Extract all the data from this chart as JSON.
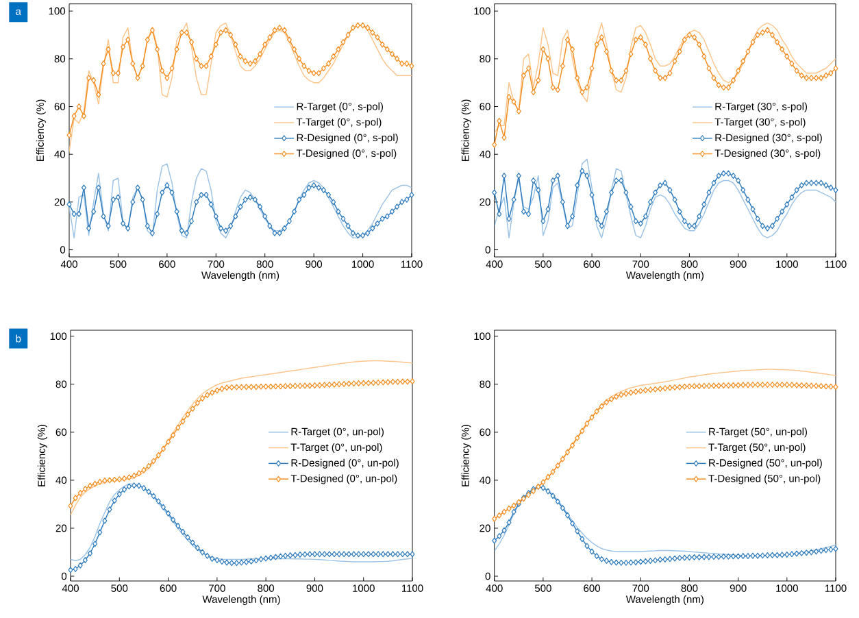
{
  "chart_data": [
    {
      "type": "line",
      "annotations": [
        "a"
      ],
      "xlabel": "Wavelength (nm)",
      "ylabel": "Efficiency (%)",
      "xlim": [
        400,
        1100
      ],
      "ylim": [
        -3,
        103
      ],
      "xticks": [
        400,
        500,
        600,
        700,
        800,
        900,
        1000,
        1100
      ],
      "yticks": [
        0,
        20,
        40,
        60,
        80,
        100
      ],
      "legend": "right",
      "x": [
        400,
        410,
        420,
        430,
        440,
        450,
        460,
        470,
        480,
        490,
        500,
        510,
        520,
        530,
        540,
        550,
        560,
        570,
        580,
        590,
        600,
        610,
        620,
        630,
        640,
        650,
        660,
        670,
        680,
        690,
        700,
        710,
        720,
        730,
        740,
        750,
        760,
        770,
        780,
        790,
        800,
        810,
        820,
        830,
        840,
        850,
        860,
        870,
        880,
        890,
        900,
        910,
        920,
        930,
        940,
        950,
        960,
        970,
        980,
        990,
        1000,
        1010,
        1020,
        1030,
        1040,
        1050,
        1060,
        1070,
        1080,
        1090,
        1100
      ],
      "series": [
        {
          "name": "R-Target (0°, s-pol)",
          "color": "#9dc3e6",
          "marker": "none",
          "line_style": "solid",
          "values": [
            18,
            5,
            22,
            23,
            6,
            20,
            32,
            15,
            8,
            29,
            30,
            12,
            8,
            22,
            26,
            21,
            8,
            6,
            25,
            35,
            36,
            28,
            15,
            6,
            5,
            20,
            30,
            34,
            33,
            25,
            12,
            7,
            5,
            9,
            16,
            22,
            25,
            24,
            21,
            17,
            13,
            10,
            8,
            8,
            9,
            12,
            16,
            21,
            25,
            28,
            29,
            28,
            26,
            22,
            18,
            14,
            10,
            7,
            5,
            5,
            6,
            8,
            11,
            15,
            19,
            22,
            25,
            26,
            27,
            27,
            26
          ]
        },
        {
          "name": "T-Target (0°, s-pol)",
          "color": "#fdc58c",
          "marker": "none",
          "line_style": "solid",
          "values": [
            41,
            55,
            53,
            58,
            75,
            70,
            61,
            77,
            88,
            70,
            70,
            89,
            93,
            78,
            72,
            77,
            88,
            93,
            85,
            65,
            64,
            72,
            88,
            91,
            95,
            85,
            72,
            65,
            65,
            78,
            91,
            94,
            95,
            90,
            83,
            77,
            75,
            75,
            77,
            80,
            84,
            88,
            91,
            92,
            91,
            87,
            82,
            77,
            73,
            71,
            70,
            70,
            72,
            75,
            78,
            82,
            86,
            90,
            93,
            94,
            94,
            92,
            88,
            84,
            80,
            77,
            75,
            73,
            73,
            73,
            73
          ]
        },
        {
          "name": "R-Designed (0°, s-pol)",
          "color": "#2e7bbd",
          "marker": "diamond",
          "line_style": "solid",
          "values": [
            19,
            15,
            15,
            26,
            9,
            16,
            26,
            14,
            10,
            21,
            22,
            11,
            9,
            20,
            26,
            21,
            10,
            7,
            15,
            24,
            27,
            24,
            16,
            8,
            7,
            12,
            20,
            23,
            23,
            19,
            14,
            9,
            8,
            10,
            14,
            18,
            21,
            22,
            21,
            18,
            14,
            10,
            7,
            7,
            9,
            12,
            16,
            21,
            23,
            26,
            27,
            26,
            25,
            23,
            20,
            16,
            13,
            10,
            7,
            6,
            6,
            7,
            9,
            11,
            13,
            14,
            16,
            18,
            20,
            21,
            23
          ]
        },
        {
          "name": "T-Designed (0°, s-pol)",
          "color": "#f58d1e",
          "marker": "diamond",
          "line_style": "solid",
          "values": [
            48,
            56,
            60,
            56,
            72,
            71,
            65,
            78,
            84,
            74,
            74,
            85,
            88,
            78,
            72,
            77,
            88,
            92,
            84,
            75,
            72,
            76,
            84,
            91,
            91,
            87,
            80,
            77,
            77,
            81,
            86,
            91,
            92,
            90,
            86,
            81,
            79,
            78,
            79,
            82,
            86,
            89,
            92,
            93,
            92,
            88,
            84,
            80,
            77,
            75,
            74,
            74,
            76,
            78,
            81,
            84,
            87,
            90,
            93,
            94,
            94,
            93,
            91,
            89,
            86,
            84,
            82,
            80,
            78,
            78,
            77
          ]
        }
      ]
    },
    {
      "type": "line",
      "xlabel": "Wavelength (nm)",
      "ylabel": "Efficiency (%)",
      "xlim": [
        400,
        1100
      ],
      "ylim": [
        -3,
        103
      ],
      "xticks": [
        400,
        500,
        600,
        700,
        800,
        900,
        1000,
        1100
      ],
      "yticks": [
        0,
        20,
        40,
        60,
        80,
        100
      ],
      "legend": "right",
      "x": [
        400,
        410,
        420,
        430,
        440,
        450,
        460,
        470,
        480,
        490,
        500,
        510,
        520,
        530,
        540,
        550,
        560,
        570,
        580,
        590,
        600,
        610,
        620,
        630,
        640,
        650,
        660,
        670,
        680,
        690,
        700,
        710,
        720,
        730,
        740,
        750,
        760,
        770,
        780,
        790,
        800,
        810,
        820,
        830,
        840,
        850,
        860,
        870,
        880,
        890,
        900,
        910,
        920,
        930,
        940,
        950,
        960,
        970,
        980,
        990,
        1000,
        1010,
        1020,
        1030,
        1040,
        1050,
        1060,
        1070,
        1080,
        1090,
        1100
      ],
      "series": [
        {
          "name": "R-Target (30°, s-pol)",
          "color": "#9dc3e6",
          "marker": "none",
          "line_style": "solid",
          "values": [
            10,
            17,
            22,
            5,
            20,
            30,
            18,
            17,
            22,
            31,
            6,
            12,
            26,
            28,
            19,
            9,
            10,
            23,
            36,
            38,
            26,
            10,
            5,
            13,
            25,
            34,
            33,
            23,
            14,
            6,
            5,
            10,
            17,
            22,
            23,
            22,
            19,
            15,
            12,
            9,
            8,
            8,
            11,
            15,
            20,
            25,
            28,
            29,
            29,
            28,
            25,
            21,
            17,
            13,
            9,
            6,
            5,
            6,
            8,
            12,
            15,
            19,
            22,
            24,
            25,
            25,
            25,
            24,
            23,
            22,
            20
          ]
        },
        {
          "name": "T-Target (30°, s-pol)",
          "color": "#fdc58c",
          "marker": "none",
          "line_style": "solid",
          "values": [
            49,
            52,
            52,
            70,
            62,
            58,
            80,
            82,
            68,
            78,
            93,
            86,
            74,
            73,
            88,
            92,
            80,
            70,
            65,
            62,
            75,
            88,
            95,
            86,
            75,
            67,
            66,
            72,
            85,
            93,
            94,
            91,
            86,
            80,
            77,
            77,
            78,
            81,
            85,
            89,
            91,
            92,
            91,
            88,
            83,
            78,
            74,
            71,
            70,
            71,
            74,
            78,
            83,
            88,
            92,
            94,
            95,
            94,
            92,
            88,
            85,
            81,
            78,
            76,
            74,
            74,
            74,
            75,
            76,
            78,
            80
          ]
        },
        {
          "name": "R-Designed (30°, s-pol)",
          "color": "#2e7bbd",
          "marker": "diamond",
          "line_style": "solid",
          "values": [
            24,
            15,
            31,
            13,
            21,
            31,
            16,
            15,
            29,
            25,
            12,
            17,
            29,
            31,
            20,
            10,
            14,
            27,
            33,
            31,
            23,
            13,
            10,
            16,
            24,
            29,
            29,
            24,
            18,
            12,
            11,
            14,
            20,
            24,
            27,
            28,
            25,
            21,
            16,
            12,
            10,
            10,
            14,
            19,
            24,
            28,
            31,
            32,
            32,
            31,
            29,
            25,
            21,
            17,
            13,
            10,
            9,
            10,
            13,
            16,
            19,
            22,
            25,
            27,
            28,
            28,
            28,
            28,
            27,
            26,
            25
          ]
        },
        {
          "name": "T-Designed (30°, s-pol)",
          "color": "#f58d1e",
          "marker": "diamond",
          "line_style": "solid",
          "values": [
            44,
            54,
            47,
            64,
            62,
            58,
            73,
            76,
            66,
            71,
            84,
            80,
            68,
            67,
            77,
            88,
            84,
            72,
            66,
            68,
            76,
            86,
            89,
            83,
            75,
            71,
            71,
            75,
            82,
            88,
            89,
            86,
            80,
            75,
            72,
            72,
            74,
            79,
            83,
            88,
            90,
            89,
            86,
            81,
            76,
            72,
            69,
            68,
            68,
            71,
            75,
            79,
            83,
            87,
            90,
            91,
            92,
            90,
            87,
            84,
            81,
            78,
            75,
            73,
            72,
            72,
            72,
            72,
            73,
            74,
            76
          ]
        }
      ]
    },
    {
      "type": "line",
      "annotations": [
        "b"
      ],
      "xlabel": "Wavelength (nm)",
      "ylabel": "Efficiency (%)",
      "xlim": [
        400,
        1100
      ],
      "ylim": [
        -2,
        102.5
      ],
      "xticks": [
        400,
        500,
        600,
        700,
        800,
        900,
        1000,
        1100
      ],
      "yticks": [
        0,
        20,
        40,
        60,
        80,
        100
      ],
      "legend": "right",
      "x": [
        400,
        410,
        420,
        430,
        440,
        450,
        460,
        470,
        480,
        490,
        500,
        510,
        520,
        530,
        540,
        550,
        560,
        570,
        580,
        590,
        600,
        610,
        620,
        630,
        640,
        650,
        660,
        670,
        680,
        690,
        700,
        710,
        720,
        730,
        740,
        750,
        760,
        770,
        780,
        790,
        800,
        810,
        820,
        830,
        840,
        850,
        860,
        870,
        880,
        890,
        900,
        910,
        920,
        930,
        940,
        950,
        960,
        970,
        980,
        990,
        1000,
        1010,
        1020,
        1030,
        1040,
        1050,
        1060,
        1070,
        1080,
        1090,
        1100
      ],
      "series": [
        {
          "name": "R-Target (0°, un-pol)",
          "color": "#9dc3e6",
          "marker": "none",
          "line_style": "solid",
          "values": [
            7,
            6.5,
            7,
            9,
            12,
            16.5,
            22,
            26.5,
            31,
            34,
            36,
            37.5,
            38.5,
            38.5,
            38,
            36.8,
            35,
            33,
            30.5,
            28,
            25.5,
            22.7,
            20,
            17.4,
            15,
            12.8,
            11,
            9.6,
            8.5,
            7.8,
            7.3,
            7.1,
            7,
            7,
            7,
            7,
            7.1,
            7.2,
            7.2,
            7.3,
            7.3,
            7.3,
            7.3,
            7.3,
            7.3,
            7.3,
            7.2,
            7.2,
            7.1,
            7.1,
            7,
            6.9,
            6.8,
            6.6,
            6.5,
            6.3,
            6.2,
            6.1,
            6,
            6,
            6,
            6,
            6,
            6.1,
            6.1,
            6.2,
            6.4,
            6.7,
            7,
            7.2,
            7.5
          ]
        },
        {
          "name": "T-Target (0°, un-pol)",
          "color": "#fdc58c",
          "marker": "none",
          "line_style": "solid",
          "values": [
            25.5,
            29.5,
            33,
            35,
            36.5,
            37.6,
            38.5,
            39,
            39.5,
            39.8,
            40,
            40.2,
            40.5,
            41.1,
            42,
            43.3,
            45,
            47.3,
            50,
            53,
            56.4,
            59.8,
            63,
            66.2,
            69,
            71.7,
            74,
            76,
            77.5,
            78.7,
            79.8,
            80.5,
            81,
            81.5,
            82,
            82.5,
            82.8,
            83.1,
            83.4,
            83.7,
            84,
            84.3,
            84.6,
            84.9,
            85.2,
            85.5,
            85.8,
            86.1,
            86.4,
            86.7,
            87,
            87.3,
            87.6,
            87.9,
            88.2,
            88.5,
            88.8,
            89.1,
            89.3,
            89.5,
            89.6,
            89.7,
            89.8,
            89.8,
            89.7,
            89.6,
            89.5,
            89.4,
            89.2,
            89,
            88.8
          ]
        },
        {
          "name": "R-Designed (0°, un-pol)",
          "color": "#2e7bbd",
          "marker": "diamond",
          "line_style": "solid",
          "values": [
            2.6,
            3,
            4.5,
            6.7,
            9.5,
            13.5,
            18.3,
            23.1,
            27.8,
            31.5,
            34.2,
            36.1,
            37.4,
            37.8,
            37.7,
            36.7,
            35.2,
            33.4,
            31.2,
            28.8,
            26.2,
            23.5,
            21,
            18.5,
            16.2,
            14,
            11.8,
            10,
            8.5,
            7.3,
            6.7,
            6.1,
            5.7,
            5.5,
            5.5,
            5.7,
            5.9,
            6.2,
            6.6,
            7.1,
            7.4,
            7.7,
            8,
            8.3,
            8.5,
            8.7,
            8.8,
            9,
            9.1,
            9.2,
            9.2,
            9.2,
            9.2,
            9.2,
            9.2,
            9.2,
            9.2,
            9.2,
            9.2,
            9.2,
            9.2,
            9.2,
            9.2,
            9.2,
            9.2,
            9.2,
            9.2,
            9.2,
            9.2,
            9.2,
            9.2
          ]
        },
        {
          "name": "T-Designed (0°, un-pol)",
          "color": "#f58d1e",
          "marker": "diamond",
          "line_style": "solid",
          "values": [
            29.3,
            32.6,
            34.7,
            36.4,
            37.7,
            38.5,
            39.3,
            39.8,
            40,
            40.2,
            40.4,
            40.7,
            41.2,
            41.9,
            42.9,
            44.2,
            45.9,
            48,
            50.4,
            53.1,
            56,
            58.8,
            61.9,
            64.5,
            67.4,
            69.8,
            72.2,
            74.1,
            75.5,
            76.5,
            77.4,
            78.1,
            78.6,
            78.7,
            78.8,
            78.8,
            78.9,
            78.9,
            78.9,
            79,
            79,
            79,
            79.1,
            79.1,
            79.2,
            79.2,
            79.3,
            79.3,
            79.4,
            79.4,
            79.5,
            79.6,
            79.7,
            79.8,
            79.9,
            80,
            80.1,
            80.2,
            80.3,
            80.4,
            80.5,
            80.5,
            80.6,
            80.7,
            80.8,
            80.9,
            81,
            81,
            81.1,
            81.1,
            81.2
          ]
        }
      ]
    },
    {
      "type": "line",
      "xlabel": "Wavelength (nm)",
      "ylabel": "Efficiency (%)",
      "xlim": [
        400,
        1100
      ],
      "ylim": [
        -2,
        102.5
      ],
      "xticks": [
        400,
        500,
        600,
        700,
        800,
        900,
        1000,
        1100
      ],
      "yticks": [
        0,
        20,
        40,
        60,
        80,
        100
      ],
      "legend": "right",
      "x": [
        400,
        410,
        420,
        430,
        440,
        450,
        460,
        470,
        480,
        490,
        500,
        510,
        520,
        530,
        540,
        550,
        560,
        570,
        580,
        590,
        600,
        610,
        620,
        630,
        640,
        650,
        660,
        670,
        680,
        690,
        700,
        710,
        720,
        730,
        740,
        750,
        760,
        770,
        780,
        790,
        800,
        810,
        820,
        830,
        840,
        850,
        860,
        870,
        880,
        890,
        900,
        910,
        920,
        930,
        940,
        950,
        960,
        970,
        980,
        990,
        1000,
        1010,
        1020,
        1030,
        1040,
        1050,
        1060,
        1070,
        1080,
        1090,
        1100
      ],
      "series": [
        {
          "name": "R-Target (50°, un-pol)",
          "color": "#9dc3e6",
          "marker": "none",
          "line_style": "solid",
          "values": [
            10.5,
            13.5,
            17,
            21.5,
            26,
            30,
            33,
            35,
            36.5,
            37.2,
            37,
            35.8,
            34,
            31.7,
            29,
            26,
            23,
            20.3,
            18,
            15.8,
            14,
            12.6,
            11.5,
            10.9,
            10.5,
            10.3,
            10.3,
            10.3,
            10.3,
            10.3,
            10.3,
            10.4,
            10.5,
            10.6,
            10.7,
            10.7,
            10.7,
            10.6,
            10.5,
            10.4,
            10.3,
            10.1,
            9.9,
            9.8,
            9.6,
            9.5,
            9.3,
            9.2,
            9,
            8.8,
            8.7,
            8.6,
            8.6,
            8.5,
            8.5,
            8.5,
            8.6,
            8.7,
            8.8,
            8.9,
            9,
            9.3,
            9.6,
            9.9,
            10.2,
            10.5,
            10.9,
            11.4,
            11.9,
            12.4,
            13
          ]
        },
        {
          "name": "T-Target (50°, un-pol)",
          "color": "#fdc58c",
          "marker": "none",
          "line_style": "solid",
          "values": [
            24,
            25.4,
            26.8,
            28.2,
            29.6,
            31,
            32.5,
            34,
            35.6,
            37.3,
            39,
            41.2,
            43.6,
            46.2,
            49,
            52,
            55,
            58,
            61,
            64,
            66.5,
            69,
            71.5,
            73.4,
            74.8,
            76,
            77,
            77.8,
            78.5,
            79,
            79.5,
            79.8,
            80.1,
            80.4,
            80.7,
            81,
            81.4,
            81.8,
            82.2,
            82.6,
            83,
            83.3,
            83.6,
            83.9,
            84.2,
            84.5,
            84.7,
            84.9,
            85.1,
            85.3,
            85.5,
            85.7,
            85.8,
            85.9,
            86,
            86.1,
            86.2,
            86.2,
            86.1,
            86.1,
            86,
            85.9,
            85.7,
            85.5,
            85.3,
            85,
            84.8,
            84.5,
            84.2,
            83.9,
            83.6
          ]
        },
        {
          "name": "R-Designed (50°, un-pol)",
          "color": "#2e7bbd",
          "marker": "diamond",
          "line_style": "solid",
          "values": [
            14.8,
            16.7,
            19.1,
            22.4,
            26.8,
            30.1,
            32.7,
            34.6,
            36.3,
            37.3,
            36.8,
            35.4,
            33.5,
            31.1,
            28.4,
            25.4,
            22,
            18.7,
            15.5,
            12.6,
            10.3,
            8.4,
            7.1,
            6.4,
            5.9,
            5.7,
            5.6,
            5.6,
            5.7,
            5.8,
            6,
            6.2,
            6.4,
            6.6,
            6.9,
            7,
            7.2,
            7.4,
            7.6,
            7.7,
            7.8,
            7.9,
            7.9,
            8,
            8,
            8.1,
            8.1,
            8.2,
            8.2,
            8.3,
            8.3,
            8.4,
            8.4,
            8.5,
            8.5,
            8.6,
            8.7,
            8.8,
            8.8,
            8.9,
            9,
            9.2,
            9.4,
            9.6,
            9.8,
            10,
            10.3,
            10.6,
            10.9,
            11.1,
            11.4
          ]
        },
        {
          "name": "T-Designed (50°, un-pol)",
          "color": "#f58d1e",
          "marker": "diamond",
          "line_style": "solid",
          "values": [
            23.9,
            25.3,
            26.8,
            28.2,
            29.4,
            30.9,
            32.3,
            33.9,
            35.5,
            37.3,
            39.2,
            41.3,
            43.5,
            46.1,
            48.8,
            51.7,
            54.5,
            57.6,
            60.5,
            63.6,
            66.2,
            68.7,
            70.8,
            72.5,
            73.8,
            74.8,
            75.6,
            76.1,
            76.5,
            76.9,
            77.2,
            77.5,
            77.7,
            77.9,
            78.1,
            78.3,
            78.5,
            78.7,
            78.8,
            79,
            79.1,
            79.2,
            79.2,
            79.3,
            79.3,
            79.4,
            79.4,
            79.5,
            79.5,
            79.6,
            79.6,
            79.7,
            79.7,
            79.8,
            79.8,
            79.8,
            79.8,
            79.8,
            79.8,
            79.8,
            79.8,
            79.7,
            79.6,
            79.5,
            79.5,
            79.4,
            79.3,
            79.2,
            79.1,
            79,
            78.9
          ]
        }
      ]
    }
  ]
}
